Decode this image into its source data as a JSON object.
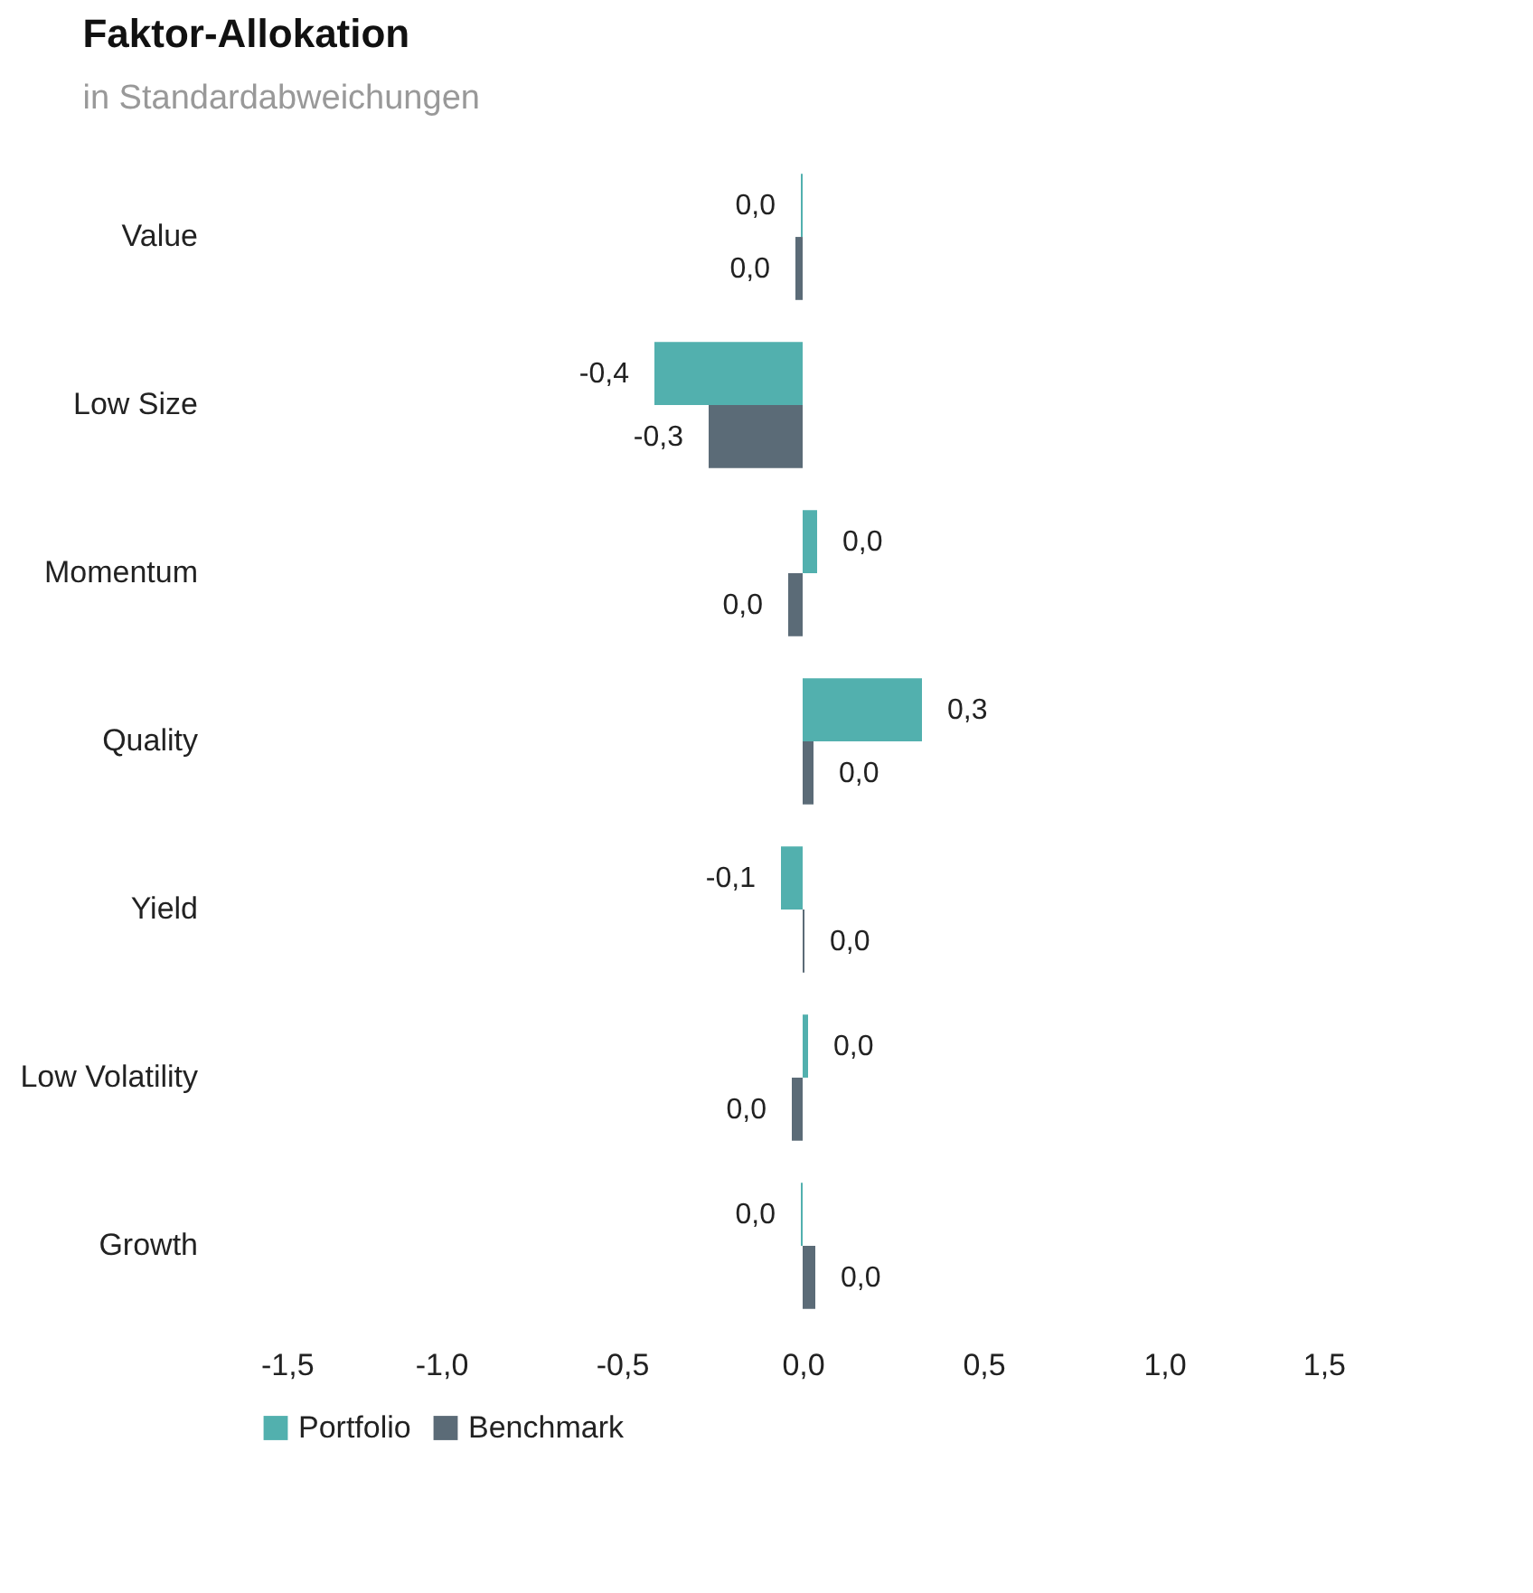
{
  "chart_data": {
    "type": "bar",
    "orientation": "horizontal",
    "title": "Faktor-Allokation",
    "subtitle": "in Standardabweichungen",
    "categories": [
      "Value",
      "Low Size",
      "Momentum",
      "Quality",
      "Yield",
      "Low Volatility",
      "Growth"
    ],
    "series": [
      {
        "name": "Portfolio",
        "color": "#52b0ae",
        "values": [
          -0.005,
          -0.41,
          0.04,
          0.33,
          -0.06,
          0.015,
          -0.005
        ],
        "value_labels": [
          "0,0",
          "-0,4",
          "0,0",
          "0,3",
          "-0,1",
          "0,0",
          "0,0"
        ]
      },
      {
        "name": "Benchmark",
        "color": "#5b6b77",
        "values": [
          -0.02,
          -0.26,
          -0.04,
          0.03,
          0.005,
          -0.03,
          0.035
        ],
        "value_labels": [
          "0,0",
          "-0,3",
          "0,0",
          "0,0",
          "0,0",
          "0,0",
          "0,0"
        ]
      }
    ],
    "xlim": [
      -1.5,
      1.5
    ],
    "xticks": [
      {
        "value": -1.5,
        "label": "-1,5"
      },
      {
        "value": -1.0,
        "label": "-1,0"
      },
      {
        "value": -0.5,
        "label": "-0,5"
      },
      {
        "value": 0,
        "label": "0,0"
      },
      {
        "value": 0.5,
        "label": "0,5"
      },
      {
        "value": 1.0,
        "label": "1,0"
      },
      {
        "value": 1.5,
        "label": "1,5"
      }
    ],
    "grid": false,
    "legend": "bottom"
  }
}
